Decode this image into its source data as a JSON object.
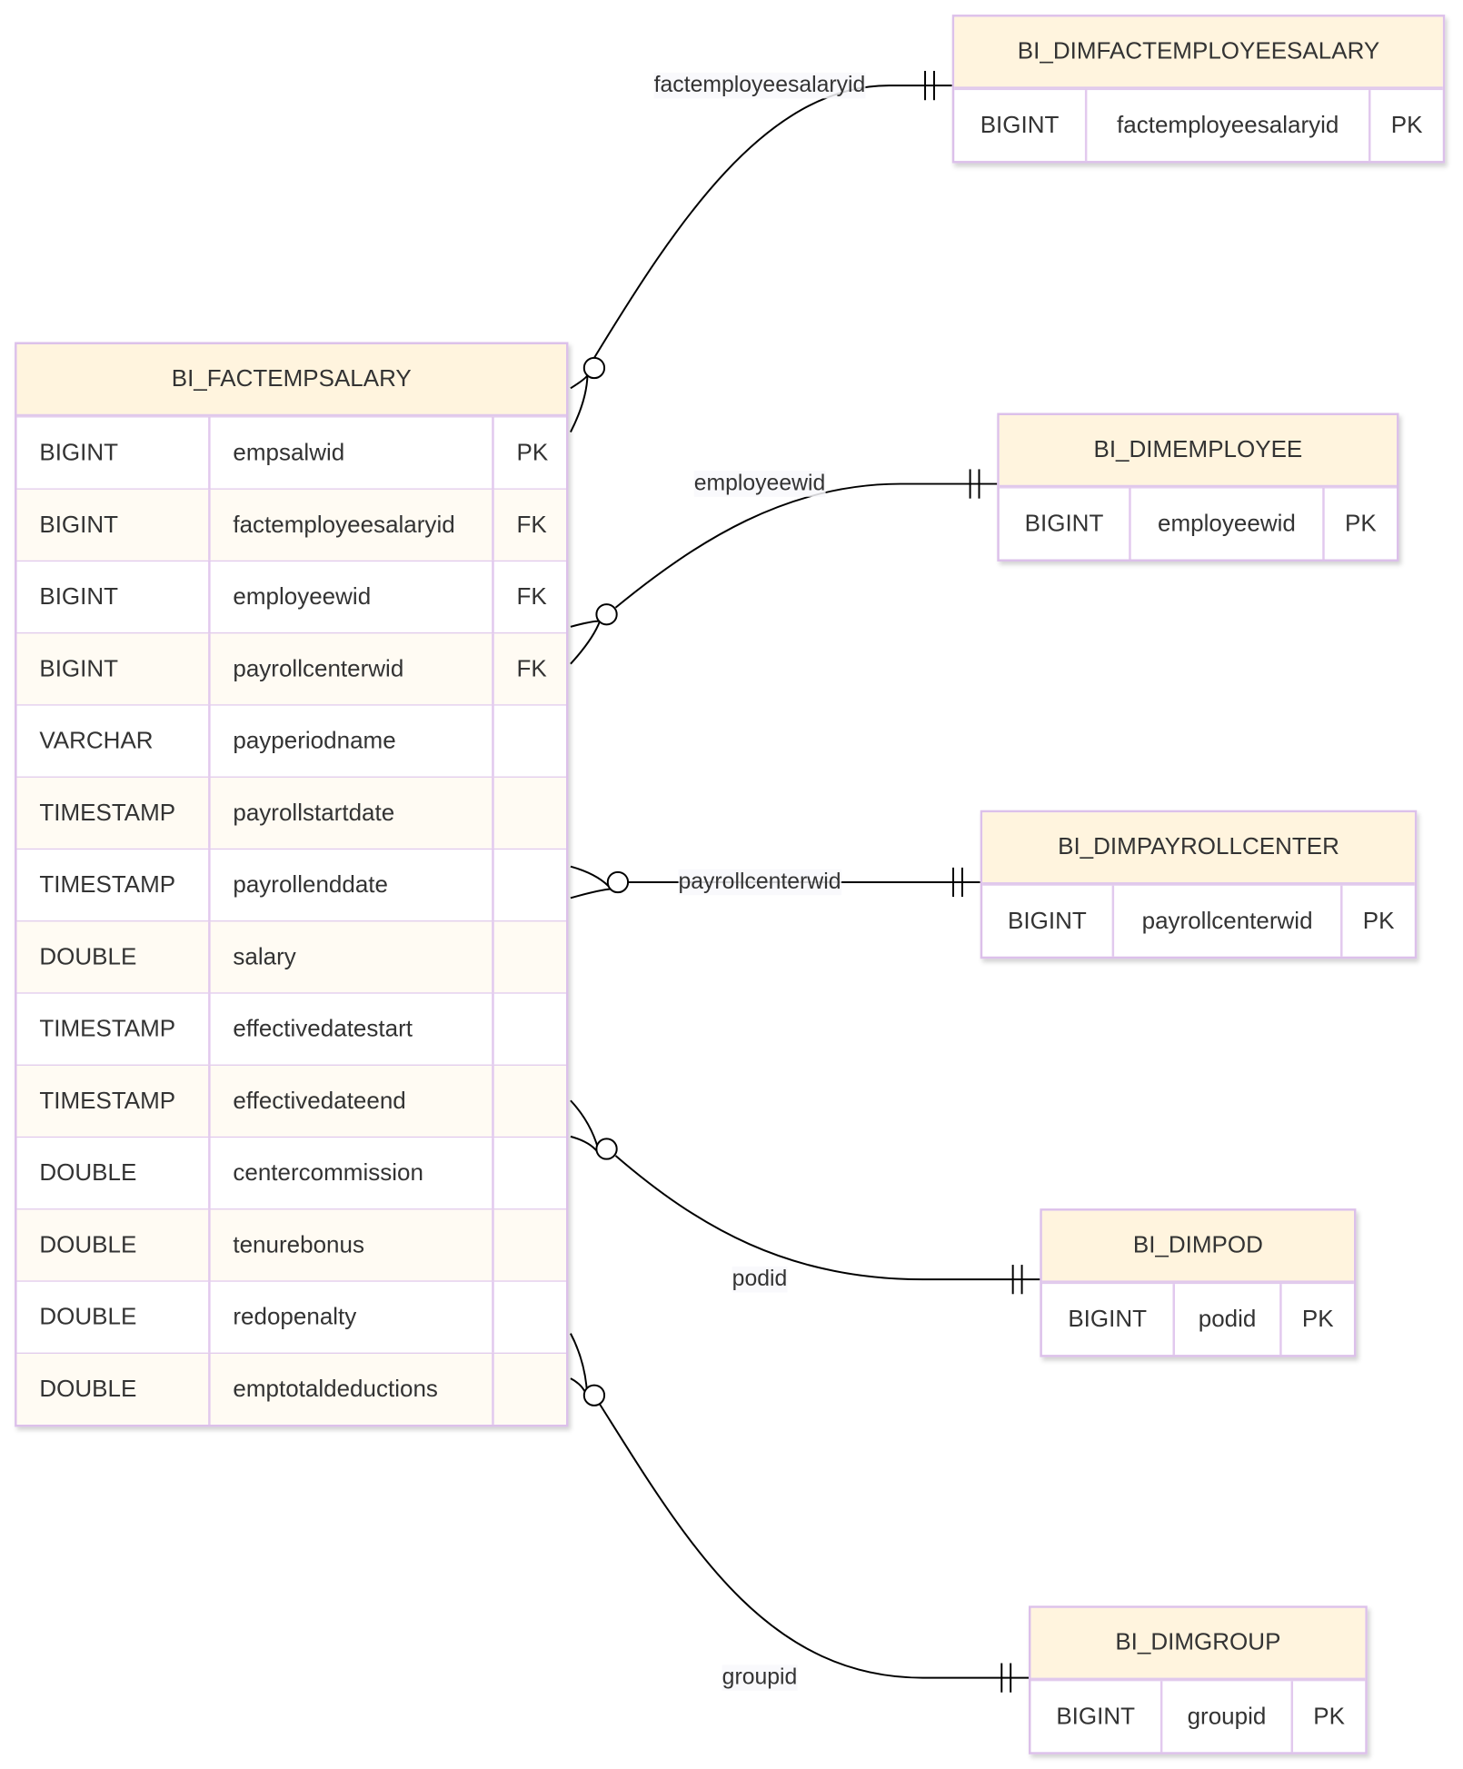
{
  "entities": [
    {
      "id": "fact",
      "name": "BI_FACTEMPSALARY",
      "attributes": [
        {
          "type": "BIGINT",
          "name": "empsalwid",
          "key": "PK"
        },
        {
          "type": "BIGINT",
          "name": "factemployeesalaryid",
          "key": "FK"
        },
        {
          "type": "BIGINT",
          "name": "employeewid",
          "key": "FK"
        },
        {
          "type": "BIGINT",
          "name": "payrollcenterwid",
          "key": "FK"
        },
        {
          "type": "VARCHAR",
          "name": "payperiodname",
          "key": ""
        },
        {
          "type": "TIMESTAMP",
          "name": "payrollstartdate",
          "key": ""
        },
        {
          "type": "TIMESTAMP",
          "name": "payrollenddate",
          "key": ""
        },
        {
          "type": "DOUBLE",
          "name": "salary",
          "key": ""
        },
        {
          "type": "TIMESTAMP",
          "name": "effectivedatestart",
          "key": ""
        },
        {
          "type": "TIMESTAMP",
          "name": "effectivedateend",
          "key": ""
        },
        {
          "type": "DOUBLE",
          "name": "centercommission",
          "key": ""
        },
        {
          "type": "DOUBLE",
          "name": "tenurebonus",
          "key": ""
        },
        {
          "type": "DOUBLE",
          "name": "redopenalty",
          "key": ""
        },
        {
          "type": "DOUBLE",
          "name": "emptotaldeductions",
          "key": ""
        }
      ]
    },
    {
      "id": "dimfactemployeesalary",
      "name": "BI_DIMFACTEMPLOYEESALARY",
      "attributes": [
        {
          "type": "BIGINT",
          "name": "factemployeesalaryid",
          "key": "PK"
        }
      ]
    },
    {
      "id": "dimemployee",
      "name": "BI_DIMEMPLOYEE",
      "attributes": [
        {
          "type": "BIGINT",
          "name": "employeewid",
          "key": "PK"
        }
      ]
    },
    {
      "id": "dimpayrollcenter",
      "name": "BI_DIMPAYROLLCENTER",
      "attributes": [
        {
          "type": "BIGINT",
          "name": "payrollcenterwid",
          "key": "PK"
        }
      ]
    },
    {
      "id": "dimpod",
      "name": "BI_DIMPOD",
      "attributes": [
        {
          "type": "BIGINT",
          "name": "podid",
          "key": "PK"
        }
      ]
    },
    {
      "id": "dimgroup",
      "name": "BI_DIMGROUP",
      "attributes": [
        {
          "type": "BIGINT",
          "name": "groupid",
          "key": "PK"
        }
      ]
    }
  ],
  "relationships": [
    {
      "from": "fact",
      "to": "dimfactemployeesalary",
      "label": "factemployeesalaryid",
      "from_cardinality": "zero-or-more",
      "to_cardinality": "exactly-one"
    },
    {
      "from": "fact",
      "to": "dimemployee",
      "label": "employeewid",
      "from_cardinality": "zero-or-more",
      "to_cardinality": "exactly-one"
    },
    {
      "from": "fact",
      "to": "dimpayrollcenter",
      "label": "payrollcenterwid",
      "from_cardinality": "zero-or-more",
      "to_cardinality": "exactly-one"
    },
    {
      "from": "fact",
      "to": "dimpod",
      "label": "podid",
      "from_cardinality": "zero-or-more",
      "to_cardinality": "exactly-one"
    },
    {
      "from": "fact",
      "to": "dimgroup",
      "label": "groupid",
      "from_cardinality": "zero-or-more",
      "to_cardinality": "exactly-one"
    }
  ],
  "colors": {
    "header": "#fff4de",
    "border": "#dcc0ea",
    "line": "#000000",
    "text": "#333333"
  }
}
